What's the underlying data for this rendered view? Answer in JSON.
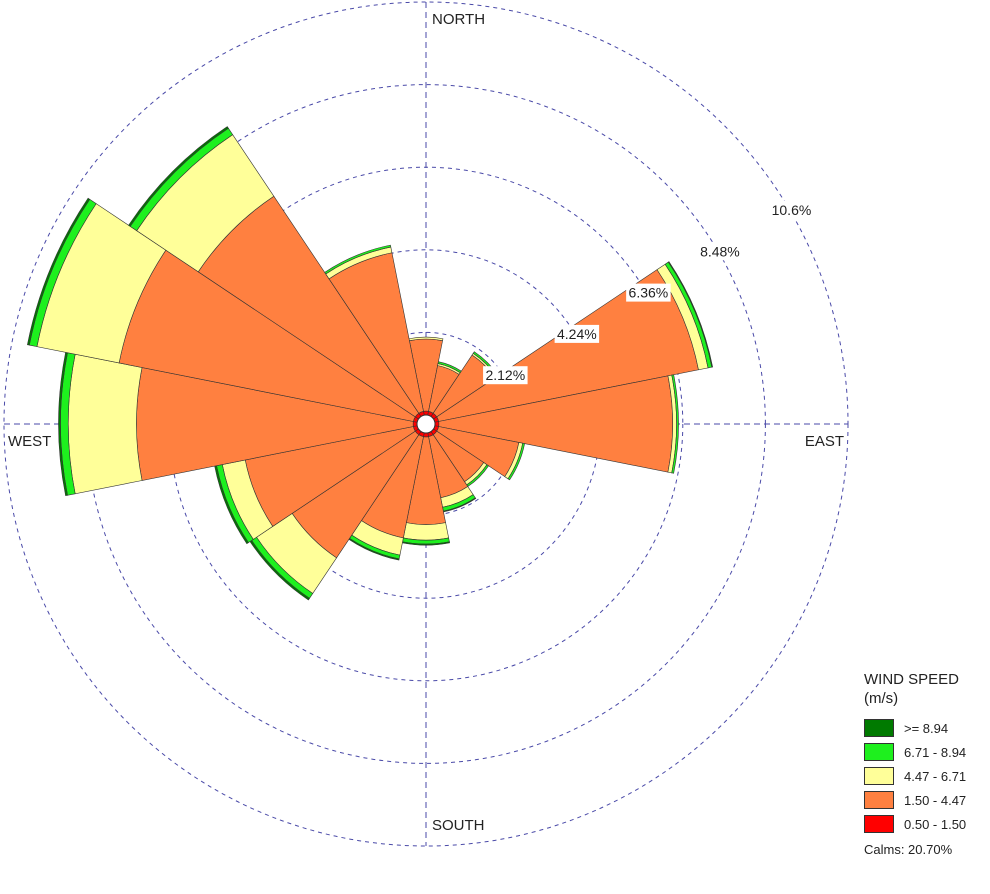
{
  "chart_data": {
    "type": "wind-rose",
    "title": "",
    "directions": [
      "N",
      "NNE",
      "NE",
      "ENE",
      "E",
      "ESE",
      "SE",
      "SSE",
      "S",
      "SSW",
      "SW",
      "WSW",
      "W",
      "WNW",
      "NW",
      "NNW"
    ],
    "compass_labels": {
      "north": "NORTH",
      "east": "EAST",
      "south": "SOUTH",
      "west": "WEST"
    },
    "ring_values": [
      2.12,
      4.24,
      6.36,
      8.48,
      10.6
    ],
    "ring_labels": [
      "2.12%",
      "4.24%",
      "6.36%",
      "8.48%",
      "10.6%"
    ],
    "rmax": 10.6,
    "legend": {
      "title": "WIND SPEED",
      "unit": "(m/s)",
      "placement": "bottom-right",
      "items": [
        {
          "label": ">= 8.94",
          "color": "#007A00"
        },
        {
          "label": "6.71 - 8.94",
          "color": "#1EF01E"
        },
        {
          "label": "4.47 - 6.71",
          "color": "#FFFF99"
        },
        {
          "label": "1.50 - 4.47",
          "color": "#FF8040"
        },
        {
          "label": "0.50 - 1.50",
          "color": "#FF0000"
        }
      ]
    },
    "calms": "Calms: 20.70%",
    "series": [
      {
        "name": "0.50 - 1.50",
        "color": "#FF0000",
        "values": [
          0.1,
          0.1,
          0.1,
          0.1,
          0.1,
          0.1,
          0.1,
          0.1,
          0.1,
          0.1,
          0.1,
          0.1,
          0.1,
          0.1,
          0.1,
          0.1
        ]
      },
      {
        "name": "1.50 - 4.47",
        "color": "#FF8040",
        "values": [
          1.85,
          1.2,
          1.8,
          6.8,
          6.0,
          2.1,
          1.45,
          1.6,
          2.25,
          2.65,
          3.8,
          4.4,
          7.1,
          7.7,
          6.7,
          4.15
        ]
      },
      {
        "name": "4.47 - 6.71",
        "color": "#FFFF99",
        "values": [
          0.05,
          0.05,
          0.05,
          0.25,
          0.1,
          0.1,
          0.1,
          0.25,
          0.4,
          0.45,
          1.1,
          0.6,
          1.75,
          2.15,
          1.9,
          0.15
        ]
      },
      {
        "name": "6.71 - 8.94",
        "color": "#1EF01E",
        "values": [
          0,
          0.05,
          0.05,
          0.1,
          0.05,
          0.05,
          0.05,
          0.1,
          0.1,
          0.1,
          0.15,
          0.15,
          0.2,
          0.2,
          0.2,
          0.05
        ]
      },
      {
        "name": ">= 8.94",
        "color": "#007A00",
        "values": [
          0,
          0,
          0,
          0.02,
          0,
          0,
          0,
          0.02,
          0.03,
          0.03,
          0.05,
          0.05,
          0.05,
          0.05,
          0.05,
          0
        ]
      }
    ]
  }
}
